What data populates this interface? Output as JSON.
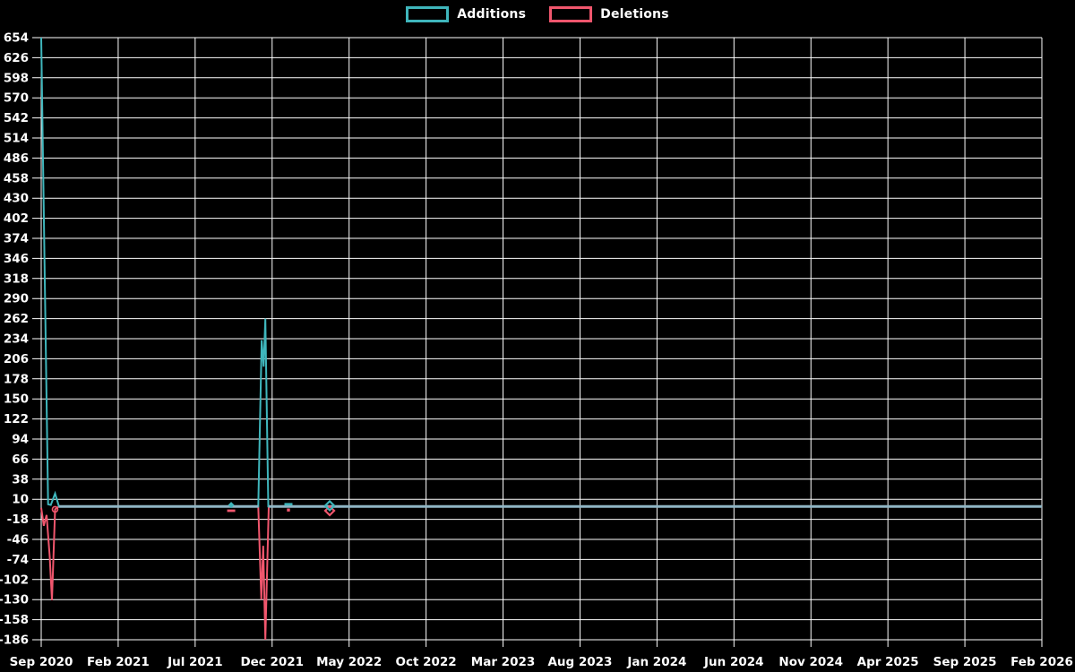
{
  "legend": {
    "items": [
      {
        "label": "Additions",
        "color": "#3fb6bc"
      },
      {
        "label": "Deletions",
        "color": "#f0566d"
      }
    ]
  },
  "chart_data": {
    "type": "line",
    "title": "",
    "background": "#000000",
    "grid_color": "#ffffff",
    "text_color": "#ffffff",
    "overlap_line_color": "#8fb5c4",
    "legend_entries": [
      "Additions",
      "Deletions"
    ],
    "x_axis": {
      "unit": "months since Sep 2020",
      "total_months": 65,
      "ticks": [
        "Sep 2020",
        "Feb 2021",
        "Jul 2021",
        "Dec 2021",
        "May 2022",
        "Oct 2022",
        "Mar 2023",
        "Aug 2023",
        "Jan 2024",
        "Jun 2024",
        "Nov 2024",
        "Apr 2025",
        "Sep 2025",
        "Feb 2026"
      ]
    },
    "y_axis": {
      "max": 654,
      "min": -186,
      "step": 28,
      "ticks": [
        654,
        626,
        598,
        570,
        542,
        514,
        486,
        458,
        430,
        402,
        374,
        346,
        318,
        290,
        262,
        234,
        206,
        178,
        150,
        122,
        94,
        66,
        38,
        10,
        -18,
        -46,
        -74,
        -102,
        -130,
        -158,
        -186
      ]
    },
    "series": [
      {
        "name": "Additions",
        "color": "#3fb6bc",
        "points": [
          [
            0,
            654
          ],
          [
            0.45,
            3
          ],
          [
            0.62,
            2
          ],
          [
            0.9,
            18
          ],
          [
            1.15,
            0
          ],
          [
            14.1,
            0
          ],
          [
            14.32,
            232
          ],
          [
            14.45,
            195
          ],
          [
            14.56,
            262
          ],
          [
            14.75,
            0
          ],
          [
            65,
            0
          ]
        ]
      },
      {
        "name": "Deletions",
        "color": "#f0566d",
        "points": [
          [
            0,
            -2
          ],
          [
            0.17,
            -27
          ],
          [
            0.35,
            -12
          ],
          [
            0.55,
            -70
          ],
          [
            0.7,
            -131
          ],
          [
            0.9,
            -4
          ],
          [
            1.15,
            0
          ],
          [
            14.1,
            0
          ],
          [
            14.3,
            -130
          ],
          [
            14.42,
            -55
          ],
          [
            14.56,
            -186
          ],
          [
            14.78,
            0
          ],
          [
            65,
            0
          ]
        ]
      }
    ],
    "overlap_segments": [
      [
        1.15,
        14.1
      ],
      [
        14.78,
        65
      ]
    ],
    "markers": [
      {
        "series": 1,
        "shape": "circle",
        "m": 0.9,
        "v": -4
      },
      {
        "series": 1,
        "shape": "dash",
        "m": 12.34,
        "v": -6
      },
      {
        "series": 0,
        "shape": "diamond-small",
        "m": 12.34,
        "v": 2
      },
      {
        "series": 1,
        "shape": "dot",
        "m": 16.06,
        "v": -5
      },
      {
        "series": 0,
        "shape": "dash",
        "m": 16.06,
        "v": 3
      },
      {
        "series": 1,
        "shape": "diamond",
        "m": 18.74,
        "v": -6
      },
      {
        "series": 0,
        "shape": "diamond",
        "m": 18.74,
        "v": 1
      }
    ]
  }
}
